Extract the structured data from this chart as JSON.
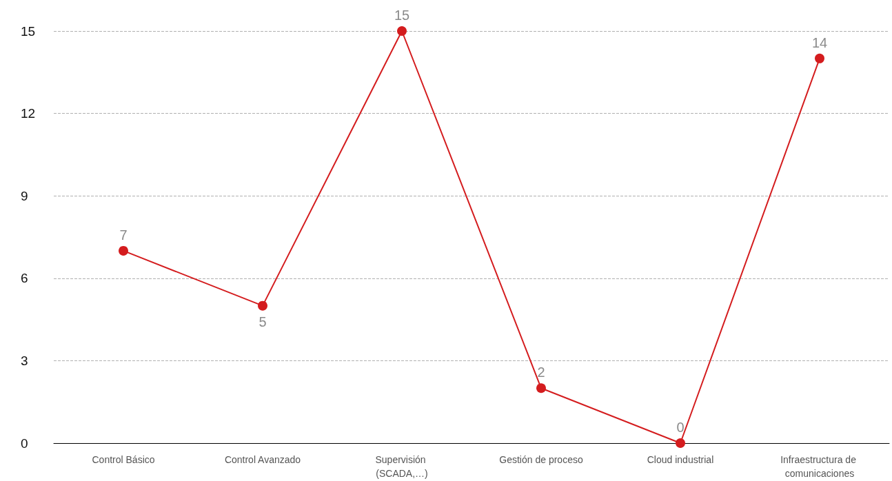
{
  "chart_data": {
    "type": "line",
    "categories": [
      "Control Básico",
      "Control Avanzado",
      "Supervisión (SCADA,…)",
      "Gestión de proceso",
      "Cloud industrial",
      "Infraestructura de comunicaciones"
    ],
    "series": [
      {
        "color": "#d41c1e",
        "values": [
          7,
          5,
          15,
          2,
          0,
          14
        ]
      }
    ],
    "ylim": [
      0,
      15
    ],
    "yticks": [
      0,
      3,
      6,
      9,
      12,
      15
    ],
    "grid": "y",
    "marker": "circle",
    "line_style": "solid",
    "data_labels": true
  }
}
